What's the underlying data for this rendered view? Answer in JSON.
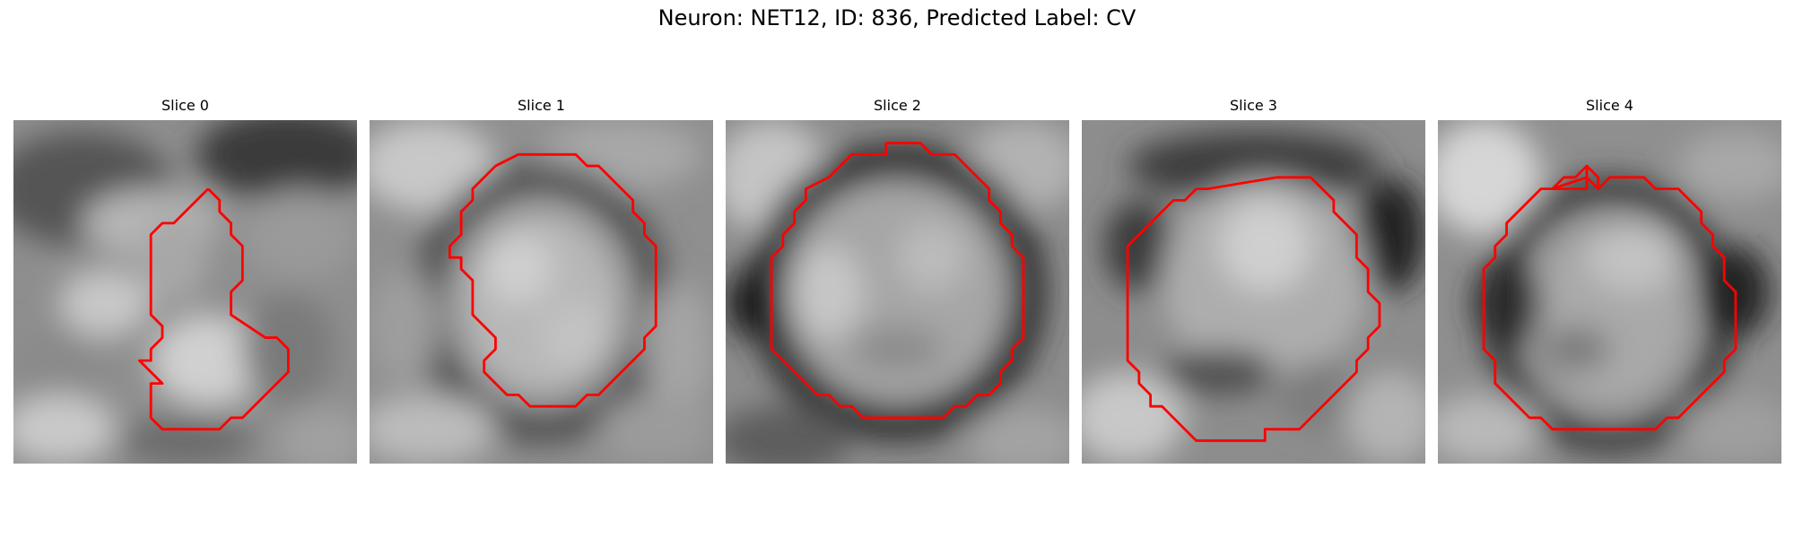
{
  "figure": {
    "title": "Neuron: NET12, ID: 836, Predicted Label: CV"
  },
  "panels": [
    {
      "title": "Slice 0"
    },
    {
      "title": "Slice 1"
    },
    {
      "title": "Slice 2"
    },
    {
      "title": "Slice 3"
    },
    {
      "title": "Slice 4"
    }
  ],
  "colors": {
    "outline": "#ff0000",
    "background": "#ffffff"
  }
}
